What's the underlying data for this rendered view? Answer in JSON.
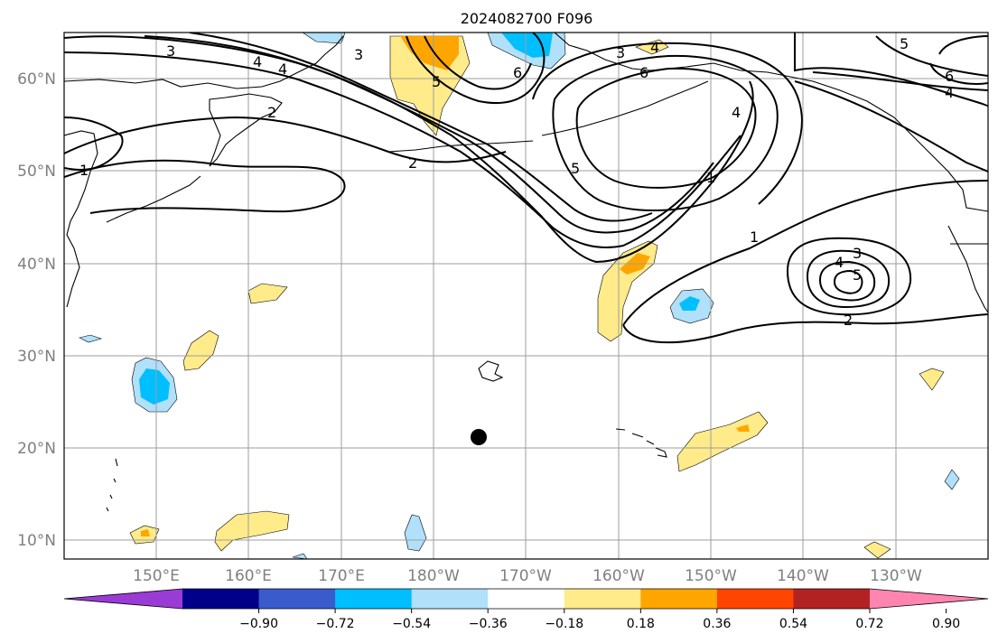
{
  "title": "2024082700 F096",
  "lat_labels": [
    "60°N",
    "50°N",
    "40°N",
    "30°N",
    "20°N",
    "10°N"
  ],
  "lon_labels": [
    "150°E",
    "160°E",
    "170°E",
    "180°W",
    "170°W",
    "160°W",
    "150°W",
    "140°W",
    "130°W"
  ],
  "colorbar": {
    "ticks": [
      "−0.90",
      "−0.72",
      "−0.54",
      "−0.36",
      "−0.18",
      "0.18",
      "0.36",
      "0.54",
      "0.72",
      "0.90"
    ],
    "colors": [
      "#9a3bd6",
      "#00008b",
      "#3a5bcc",
      "#00bfff",
      "#b0e0fa",
      "#ffffff",
      "#ffeb8a",
      "#ffa500",
      "#ff4500",
      "#b22222",
      "#ff85b0"
    ]
  },
  "contour_labels": [
    "3",
    "4",
    "3",
    "6",
    "5",
    "3",
    "4",
    "6",
    "5",
    "6",
    "4",
    "4",
    "2",
    "1",
    "2",
    "5",
    "4",
    "1",
    "1",
    "3",
    "4",
    "5",
    "2"
  ],
  "colors": {
    "grid": "#9e9e9e",
    "axis_label": "#7f7f7f",
    "contour": "#000000"
  }
}
